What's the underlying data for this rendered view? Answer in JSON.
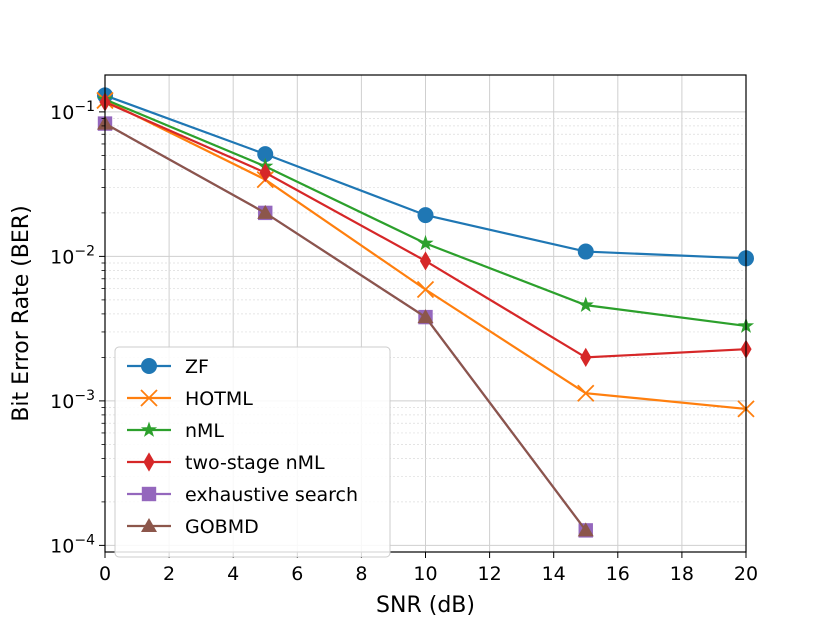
{
  "chart_data": {
    "type": "line",
    "title": "",
    "xlabel": "SNR (dB)",
    "ylabel": "Bit Error Rate (BER)",
    "xlim": [
      0,
      20
    ],
    "ylim": [
      9e-05,
      0.18
    ],
    "yscale": "log",
    "grid": true,
    "legend_position": "lower-left",
    "x_ticks": [
      0,
      2,
      4,
      6,
      8,
      10,
      12,
      14,
      16,
      18,
      20
    ],
    "x_tick_labels": [
      "0",
      "2",
      "4",
      "6",
      "8",
      "10",
      "12",
      "14",
      "16",
      "18",
      "20"
    ],
    "y_ticks": [
      0.0001,
      0.001,
      0.01,
      0.1
    ],
    "y_tick_labels": [
      {
        "base": "10",
        "exp": "−4"
      },
      {
        "base": "10",
        "exp": "−3"
      },
      {
        "base": "10",
        "exp": "−2"
      },
      {
        "base": "10",
        "exp": "−1"
      }
    ],
    "series": [
      {
        "name": "ZF",
        "color": "#1f77b4",
        "marker": "circle",
        "x": [
          0,
          5,
          10,
          15,
          20
        ],
        "y": [
          0.13,
          0.051,
          0.0193,
          0.0108,
          0.0097
        ]
      },
      {
        "name": "HOTML",
        "color": "#ff7f0e",
        "marker": "x",
        "x": [
          0,
          5,
          10,
          15,
          20
        ],
        "y": [
          0.12,
          0.034,
          0.0059,
          0.00113,
          0.00088
        ]
      },
      {
        "name": "nML",
        "color": "#2ca02c",
        "marker": "star",
        "x": [
          0,
          5,
          10,
          15,
          20
        ],
        "y": [
          0.122,
          0.042,
          0.0123,
          0.0046,
          0.0033
        ]
      },
      {
        "name": "two-stage nML",
        "color": "#d62728",
        "marker": "diamond",
        "x": [
          0,
          5,
          10,
          15,
          20
        ],
        "y": [
          0.117,
          0.038,
          0.0093,
          0.002,
          0.00228
        ]
      },
      {
        "name": "exhaustive search",
        "color": "#9467bd",
        "marker": "square",
        "x": [
          0,
          5,
          10,
          15
        ],
        "y": [
          0.083,
          0.02,
          0.0038,
          0.000127
        ]
      },
      {
        "name": "GOBMD",
        "color": "#8c564b",
        "marker": "triangle",
        "x": [
          0,
          5,
          10,
          15
        ],
        "y": [
          0.083,
          0.02,
          0.0038,
          0.000127
        ]
      }
    ]
  }
}
